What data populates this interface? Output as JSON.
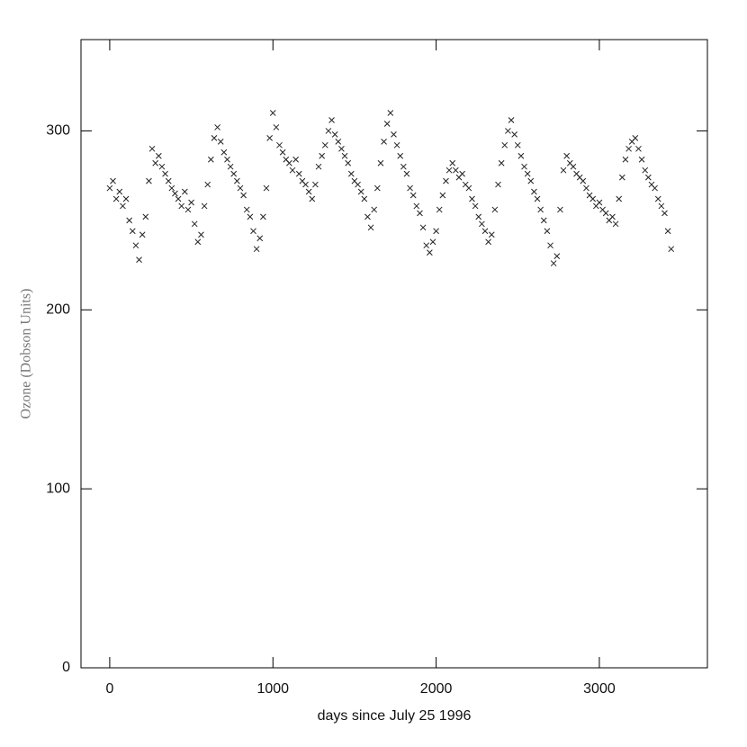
{
  "chart_data": {
    "type": "scatter",
    "xlabel": "days since July 25 1996",
    "ylabel": "Ozone (Dobson Units)",
    "color": "#222222",
    "marker": "x",
    "xlim": [
      -176,
      3662
    ],
    "ylim": [
      0,
      351
    ],
    "xticks": [
      0,
      1000,
      2000,
      3000
    ],
    "yticks": [
      0,
      100,
      200,
      300
    ],
    "x": [
      0,
      20,
      40,
      60,
      80,
      100,
      120,
      140,
      160,
      180,
      200,
      220,
      240,
      260,
      280,
      300,
      320,
      340,
      360,
      380,
      400,
      420,
      440,
      460,
      480,
      500,
      520,
      540,
      560,
      580,
      600,
      620,
      640,
      660,
      680,
      700,
      720,
      740,
      760,
      780,
      800,
      820,
      840,
      860,
      880,
      900,
      920,
      940,
      960,
      980,
      1000,
      1020,
      1040,
      1060,
      1080,
      1100,
      1120,
      1140,
      1160,
      1180,
      1200,
      1220,
      1240,
      1260,
      1280,
      1300,
      1320,
      1340,
      1360,
      1380,
      1400,
      1420,
      1440,
      1460,
      1480,
      1500,
      1520,
      1540,
      1560,
      1580,
      1600,
      1620,
      1640,
      1660,
      1680,
      1700,
      1720,
      1740,
      1760,
      1780,
      1800,
      1820,
      1840,
      1860,
      1880,
      1900,
      1920,
      1940,
      1960,
      1980,
      2000,
      2020,
      2040,
      2060,
      2080,
      2100,
      2120,
      2140,
      2160,
      2180,
      2200,
      2220,
      2240,
      2260,
      2280,
      2300,
      2320,
      2340,
      2360,
      2380,
      2400,
      2420,
      2440,
      2460,
      2480,
      2500,
      2520,
      2540,
      2560,
      2580,
      2600,
      2620,
      2640,
      2660,
      2680,
      2700,
      2720,
      2740,
      2760,
      2780,
      2800,
      2820,
      2840,
      2860,
      2880,
      2900,
      2920,
      2940,
      2960,
      2980,
      3000,
      3020,
      3040,
      3060,
      3080,
      3100,
      3120,
      3140,
      3160,
      3180,
      3200,
      3220,
      3240,
      3260,
      3280,
      3300,
      3320,
      3340,
      3360,
      3380,
      3400,
      3420,
      3440
    ],
    "values": [
      268,
      272,
      262,
      266,
      258,
      262,
      250,
      244,
      236,
      228,
      242,
      252,
      272,
      290,
      282,
      286,
      280,
      276,
      272,
      268,
      265,
      262,
      258,
      266,
      256,
      260,
      248,
      238,
      242,
      258,
      270,
      284,
      296,
      302,
      294,
      288,
      284,
      280,
      276,
      272,
      268,
      264,
      256,
      252,
      244,
      234,
      240,
      252,
      268,
      296,
      310,
      302,
      292,
      288,
      284,
      282,
      278,
      284,
      276,
      272,
      270,
      266,
      262,
      270,
      280,
      286,
      292,
      300,
      306,
      298,
      294,
      290,
      286,
      282,
      276,
      272,
      270,
      266,
      262,
      252,
      246,
      256,
      268,
      282,
      294,
      304,
      310,
      298,
      292,
      286,
      280,
      276,
      268,
      264,
      258,
      254,
      246,
      236,
      232,
      238,
      244,
      256,
      264,
      272,
      278,
      282,
      278,
      274,
      276,
      270,
      268,
      262,
      258,
      252,
      248,
      244,
      238,
      242,
      256,
      270,
      282,
      292,
      300,
      306,
      298,
      292,
      286,
      280,
      276,
      272,
      266,
      262,
      256,
      250,
      244,
      236,
      226,
      230,
      256,
      278,
      286,
      282,
      280,
      276,
      274,
      272,
      268,
      264,
      262,
      258,
      260,
      256,
      254,
      250,
      252,
      248,
      262,
      274,
      284,
      290,
      294,
      296,
      290,
      284,
      278,
      274,
      270,
      268,
      262,
      258,
      254,
      244,
      234
    ]
  }
}
